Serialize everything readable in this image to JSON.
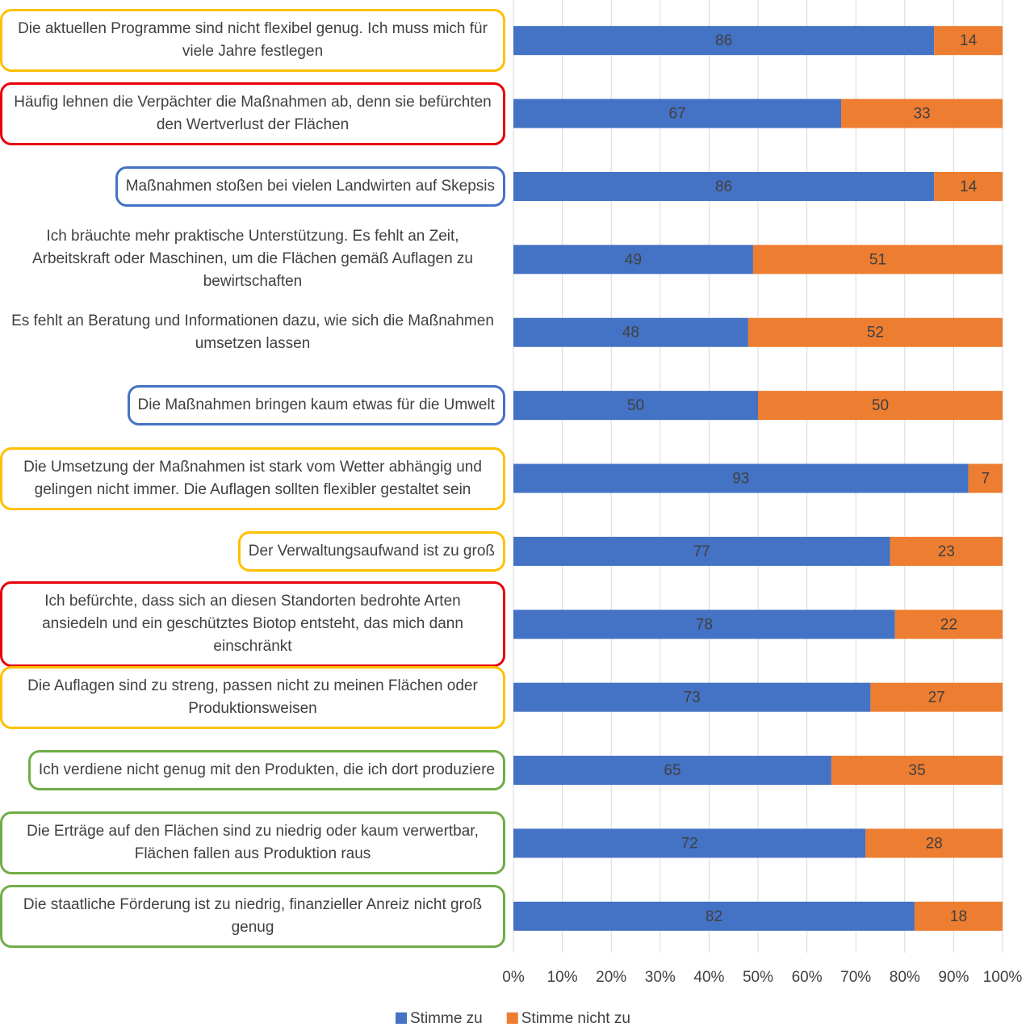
{
  "chart_data": {
    "type": "stacked_bar_horizontal",
    "categories": [
      "Die aktuellen Programme sind nicht flexibel genug. Ich muss mich für viele Jahre festlegen",
      "Häufig lehnen die Verpächter die Maßnahmen ab, denn sie befürchten den Wertverlust der Flächen",
      "Maßnahmen stoßen bei vielen Landwirten auf Skepsis",
      "Ich bräuchte mehr praktische Unterstützung. Es fehlt an Zeit, Arbeitskraft oder Maschinen, um die Flächen gemäß Auflagen zu bewirtschaften",
      "Es fehlt an Beratung und Informationen dazu, wie sich die Maßnahmen umsetzen lassen",
      "Die Maßnahmen bringen kaum etwas für die Umwelt",
      "Die Umsetzung der Maßnahmen ist stark vom Wetter abhängig und gelingen nicht immer. Die Auflagen sollten flexibler gestaltet sein",
      "Der Verwaltungsaufwand ist zu groß",
      "Ich befürchte, dass sich an diesen Standorten bedrohte Arten ansiedeln und ein geschütztes Biotop entsteht, das mich dann einschränkt",
      "Die Auflagen sind zu streng, passen nicht zu meinen Flächen oder Produktionsweisen",
      "Ich verdiene nicht genug mit den Produkten, die ich dort produziere",
      "Die Erträge auf den Flächen sind zu niedrig oder kaum verwertbar, Flächen fallen aus Produktion raus",
      "Die staatliche Förderung ist zu niedrig, finanzieller Anreiz nicht groß genug"
    ],
    "label_frames": [
      "#ffc000",
      "#e8000b",
      "#4472c4",
      null,
      null,
      "#4472c4",
      "#ffc000",
      "#ffc000",
      "#e8000b",
      "#ffc000",
      "#70ad47",
      "#70ad47",
      "#70ad47"
    ],
    "series": [
      {
        "name": "Stimme zu",
        "color": "#4472c4",
        "values": [
          86,
          67,
          86,
          49,
          48,
          50,
          93,
          77,
          78,
          73,
          65,
          72,
          82
        ]
      },
      {
        "name": "Stimme nicht zu",
        "color": "#ed7d31",
        "values": [
          14,
          33,
          14,
          51,
          52,
          50,
          7,
          23,
          22,
          27,
          35,
          28,
          18
        ]
      }
    ],
    "xlim": [
      0,
      100
    ],
    "xticks": [
      {
        "value": 0,
        "label": "0%"
      },
      {
        "value": 10,
        "label": "10%"
      },
      {
        "value": 20,
        "label": "20%"
      },
      {
        "value": 30,
        "label": "30%"
      },
      {
        "value": 40,
        "label": "40%"
      },
      {
        "value": 50,
        "label": "50%"
      },
      {
        "value": 60,
        "label": "60%"
      },
      {
        "value": 70,
        "label": "70%"
      },
      {
        "value": 80,
        "label": "80%"
      },
      {
        "value": 90,
        "label": "90%"
      },
      {
        "value": 100,
        "label": "100%"
      }
    ],
    "grid": true,
    "legend": "bottom"
  }
}
